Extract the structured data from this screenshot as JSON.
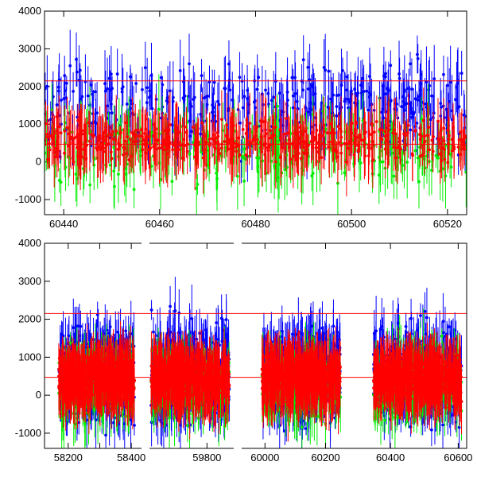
{
  "chart_data": [
    {
      "type": "scatter",
      "title": "",
      "xlabel": "",
      "ylabel": "",
      "xlim": [
        60436,
        60524
      ],
      "ylim": [
        -1400,
        4000
      ],
      "x_ticks": [
        60440,
        60460,
        60480,
        60500,
        60520
      ],
      "y_ticks": [
        -1000,
        0,
        1000,
        2000,
        3000,
        4000
      ],
      "reference_lines_y": [
        2150,
        470
      ],
      "grid": false,
      "legend": "none",
      "series": [
        {
          "color": "#0000ff",
          "x_range": [
            60436,
            60524
          ],
          "center": 1500,
          "spread": 1300,
          "point_count": 420
        },
        {
          "color": "#00ee00",
          "x_range": [
            60436,
            60524
          ],
          "center": 300,
          "spread": 1100,
          "point_count": 300
        },
        {
          "color": "#ff0000",
          "x_range": [
            60436,
            60524
          ],
          "center": 550,
          "spread": 650,
          "point_count": 520
        }
      ]
    },
    {
      "type": "scatter",
      "title": "",
      "xlabel": "",
      "ylabel": "",
      "ylim": [
        -1400,
        4000
      ],
      "y_ticks": [
        -1000,
        0,
        1000,
        2000,
        3000,
        4000
      ],
      "reference_lines_y": [
        2150,
        470
      ],
      "grid": false,
      "legend": "none",
      "segments": [
        {
          "xlim": [
            58125,
            58445
          ],
          "x_ticks": [
            58200,
            58300,
            58400
          ],
          "x_tick_labels": [
            "58200",
            "",
            "58400"
          ],
          "data_range": [
            58170,
            58410
          ]
        },
        {
          "xlim": [
            59580,
            59910
          ],
          "x_ticks": [
            59800
          ],
          "x_tick_labels": [
            "59800"
          ],
          "data_range": [
            59600,
            59880
          ]
        },
        {
          "xlim": [
            59910,
            60280
          ],
          "x_ticks": [
            60000,
            60200
          ],
          "x_tick_labels": [
            "60000",
            "60200"
          ],
          "data_range": [
            59990,
            60250
          ]
        },
        {
          "xlim": [
            60280,
            60625
          ],
          "x_ticks": [
            60400,
            60600
          ],
          "x_tick_labels": [
            "60400",
            "60600"
          ],
          "data_range": [
            60350,
            60610
          ]
        }
      ],
      "series": [
        {
          "color": "#0000ff",
          "center": 600,
          "spread": 1500,
          "points_per_segment": 380
        },
        {
          "color": "#00ee00",
          "center": 300,
          "spread": 1000,
          "points_per_segment": 240
        },
        {
          "color": "#ff0000",
          "center": 450,
          "spread": 650,
          "points_per_segment": 520
        }
      ]
    }
  ]
}
